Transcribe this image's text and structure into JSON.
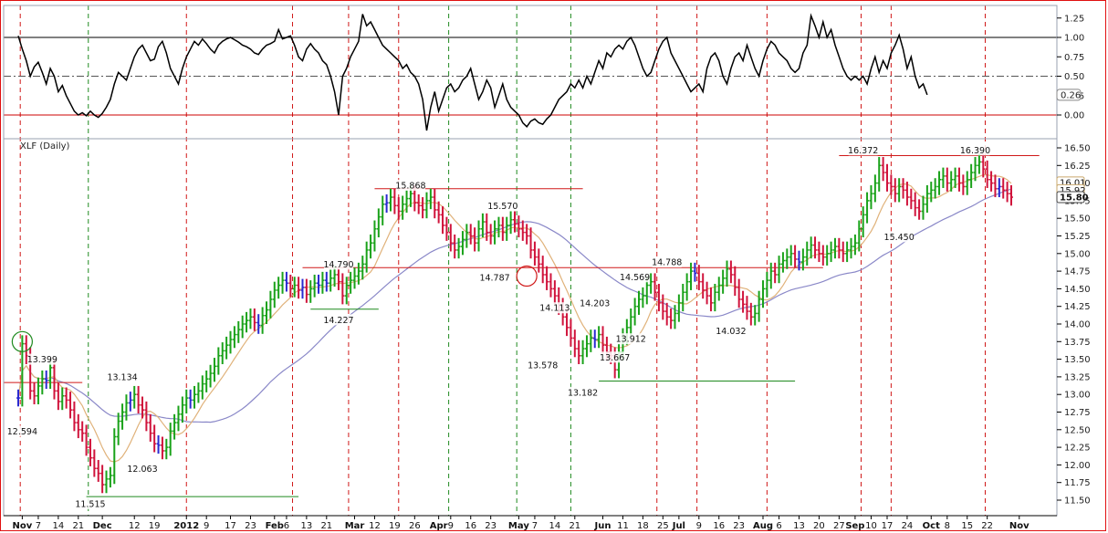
{
  "chart_data": [
    {
      "type": "line",
      "panel": "oscillator",
      "ylim": [
        -0.3,
        1.45
      ],
      "yticks": [
        "1.25",
        "1.00",
        "0.75",
        "0.50",
        "0.25",
        "0.00"
      ],
      "last_value_label": "0.26",
      "reference_lines": [
        {
          "y": 1.0,
          "style": "solid",
          "color": "#000000"
        },
        {
          "y": 0.5,
          "style": "dashdot",
          "color": "#555555"
        },
        {
          "y": 0.0,
          "style": "solid",
          "color": "#cc0000"
        }
      ],
      "series": [
        {
          "values": [
            1.02,
            0.85,
            0.7,
            0.5,
            0.62,
            0.68,
            0.55,
            0.4,
            0.6,
            0.5,
            0.3,
            0.38,
            0.25,
            0.15,
            0.05,
            0.0,
            0.03,
            -0.01,
            0.05,
            0.0,
            -0.03,
            0.02,
            0.1,
            0.2,
            0.4,
            0.55,
            0.5,
            0.45,
            0.6,
            0.75,
            0.85,
            0.9,
            0.8,
            0.7,
            0.72,
            0.88,
            0.95,
            0.8,
            0.6,
            0.5,
            0.4,
            0.6,
            0.75,
            0.85,
            0.95,
            0.9,
            0.98,
            0.92,
            0.85,
            0.8,
            0.9,
            0.95,
            0.98,
            1.0,
            0.97,
            0.94,
            0.9,
            0.88,
            0.85,
            0.8,
            0.78,
            0.85,
            0.9,
            0.92,
            0.95,
            1.1,
            0.98,
            1.0,
            1.02,
            0.9,
            0.75,
            0.7,
            0.85,
            0.92,
            0.85,
            0.8,
            0.7,
            0.65,
            0.5,
            0.3,
            0.0,
            0.5,
            0.6,
            0.75,
            0.85,
            0.95,
            1.3,
            1.15,
            1.2,
            1.1,
            1.0,
            0.9,
            0.85,
            0.8,
            0.75,
            0.7,
            0.6,
            0.65,
            0.55,
            0.5,
            0.4,
            0.2,
            -0.2,
            0.1,
            0.3,
            0.05,
            0.2,
            0.35,
            0.4,
            0.3,
            0.35,
            0.45,
            0.5,
            0.6,
            0.4,
            0.2,
            0.3,
            0.45,
            0.35,
            0.1,
            0.25,
            0.4,
            0.2,
            0.1,
            0.05,
            0.0,
            -0.1,
            -0.15,
            -0.08,
            -0.05,
            -0.1,
            -0.12,
            -0.05,
            0.0,
            0.1,
            0.2,
            0.25,
            0.3,
            0.4,
            0.35,
            0.45,
            0.35,
            0.5,
            0.4,
            0.55,
            0.7,
            0.6,
            0.8,
            0.75,
            0.85,
            0.9,
            0.85,
            0.95,
            1.0,
            0.9,
            0.75,
            0.6,
            0.5,
            0.55,
            0.7,
            0.85,
            0.95,
            1.0,
            0.8,
            0.7,
            0.6,
            0.5,
            0.4,
            0.3,
            0.35,
            0.4,
            0.3,
            0.6,
            0.75,
            0.8,
            0.7,
            0.5,
            0.4,
            0.6,
            0.75,
            0.8,
            0.7,
            0.9,
            0.75,
            0.6,
            0.5,
            0.7,
            0.85,
            0.95,
            0.9,
            0.8,
            0.75,
            0.7,
            0.6,
            0.55,
            0.6,
            0.8,
            0.9,
            1.28,
            1.15,
            1.0,
            1.2,
            1.0,
            1.1,
            0.9,
            0.75,
            0.6,
            0.5,
            0.45,
            0.5,
            0.45,
            0.5,
            0.4,
            0.6,
            0.75,
            0.55,
            0.7,
            0.6,
            0.8,
            0.9,
            1.03,
            0.85,
            0.6,
            0.75,
            0.5,
            0.35,
            0.4,
            0.26
          ]
        }
      ]
    },
    {
      "type": "bar",
      "panel": "price",
      "title": "XLF (Daily)",
      "ylim": [
        11.35,
        16.62
      ],
      "yticks": [
        "16.50",
        "16.25",
        "16.00",
        "15.75",
        "15.50",
        "15.25",
        "15.00",
        "14.75",
        "14.50",
        "14.25",
        "14.00",
        "13.75",
        "13.50",
        "13.25",
        "13.00",
        "12.75",
        "12.50",
        "12.25",
        "12.00",
        "11.75",
        "11.50"
      ],
      "xtick_labels": [
        {
          "i": 1,
          "label": "Nov",
          "bold": true
        },
        {
          "i": 5,
          "label": "7"
        },
        {
          "i": 10,
          "label": "14"
        },
        {
          "i": 15,
          "label": "21"
        },
        {
          "i": 21,
          "label": "Dec",
          "bold": true
        },
        {
          "i": 29,
          "label": "12"
        },
        {
          "i": 34,
          "label": "19"
        },
        {
          "i": 42,
          "label": "2012",
          "bold": true
        },
        {
          "i": 47,
          "label": "9"
        },
        {
          "i": 53,
          "label": "17"
        },
        {
          "i": 58,
          "label": "23"
        },
        {
          "i": 64,
          "label": "Feb",
          "bold": true
        },
        {
          "i": 67,
          "label": "6"
        },
        {
          "i": 72,
          "label": "13"
        },
        {
          "i": 77,
          "label": "21"
        },
        {
          "i": 84,
          "label": "Mar",
          "bold": true
        },
        {
          "i": 89,
          "label": "12"
        },
        {
          "i": 94,
          "label": "19"
        },
        {
          "i": 99,
          "label": "26"
        },
        {
          "i": 105,
          "label": "Apr",
          "bold": true
        },
        {
          "i": 108,
          "label": "9"
        },
        {
          "i": 113,
          "label": "16"
        },
        {
          "i": 118,
          "label": "23"
        },
        {
          "i": 125,
          "label": "May",
          "bold": true
        },
        {
          "i": 129,
          "label": "7"
        },
        {
          "i": 134,
          "label": "14"
        },
        {
          "i": 139,
          "label": "21"
        },
        {
          "i": 146,
          "label": "Jun",
          "bold": true
        },
        {
          "i": 151,
          "label": "11"
        },
        {
          "i": 156,
          "label": "18"
        },
        {
          "i": 161,
          "label": "25"
        },
        {
          "i": 165,
          "label": "Jul",
          "bold": true
        },
        {
          "i": 170,
          "label": "9"
        },
        {
          "i": 175,
          "label": "16"
        },
        {
          "i": 180,
          "label": "23"
        },
        {
          "i": 186,
          "label": "Aug",
          "bold": true
        },
        {
          "i": 190,
          "label": "6"
        },
        {
          "i": 195,
          "label": "13"
        },
        {
          "i": 200,
          "label": "20"
        },
        {
          "i": 205,
          "label": "27"
        },
        {
          "i": 209,
          "label": "Sep",
          "bold": true
        },
        {
          "i": 213,
          "label": "10"
        },
        {
          "i": 217,
          "label": "17"
        },
        {
          "i": 222,
          "label": "24"
        },
        {
          "i": 228,
          "label": "Oct",
          "bold": true
        },
        {
          "i": 232,
          "label": "8"
        },
        {
          "i": 237,
          "label": "15"
        },
        {
          "i": 242,
          "label": "22"
        },
        {
          "i": 250,
          "label": "Nov",
          "bold": true
        }
      ],
      "vertical_markers": [
        {
          "i": 0.5,
          "color": "red"
        },
        {
          "i": 17.5,
          "color": "green"
        },
        {
          "i": 42,
          "color": "red"
        },
        {
          "i": 68.5,
          "color": "red"
        },
        {
          "i": 82.5,
          "color": "red"
        },
        {
          "i": 95,
          "color": "red"
        },
        {
          "i": 107.5,
          "color": "green"
        },
        {
          "i": 124.5,
          "color": "green"
        },
        {
          "i": 138,
          "color": "green"
        },
        {
          "i": 159.5,
          "color": "red"
        },
        {
          "i": 169.5,
          "color": "red"
        },
        {
          "i": 187,
          "color": "red"
        },
        {
          "i": 210.5,
          "color": "red"
        },
        {
          "i": 218,
          "color": "red"
        },
        {
          "i": 241.5,
          "color": "red"
        }
      ],
      "horizontal_levels": [
        {
          "y": 13.17,
          "from": 0,
          "to": 16,
          "color": "red"
        },
        {
          "y": 11.55,
          "from": 17,
          "to": 70,
          "color": "green"
        },
        {
          "y": 14.21,
          "from": 73,
          "to": 90,
          "color": "green"
        },
        {
          "y": 14.8,
          "from": 71,
          "to": 201,
          "color": "red"
        },
        {
          "y": 15.92,
          "from": 89,
          "to": 141,
          "color": "red"
        },
        {
          "y": 13.19,
          "from": 145,
          "to": 194,
          "color": "green"
        },
        {
          "y": 16.39,
          "from": 205,
          "to": 255,
          "color": "red"
        }
      ],
      "price_labels": [
        {
          "i": 1,
          "y": 12.48,
          "text": "12.594"
        },
        {
          "i": 6,
          "y": 13.5,
          "text": "13.399"
        },
        {
          "i": 26,
          "y": 13.25,
          "text": "13.134"
        },
        {
          "i": 18,
          "y": 11.45,
          "text": "11.515"
        },
        {
          "i": 31,
          "y": 11.95,
          "text": "12.063"
        },
        {
          "i": 80,
          "y": 14.85,
          "text": "14.790"
        },
        {
          "i": 80,
          "y": 14.06,
          "text": "14.227"
        },
        {
          "i": 98,
          "y": 15.97,
          "text": "15.868"
        },
        {
          "i": 119,
          "y": 14.66,
          "text": "14.787"
        },
        {
          "i": 121,
          "y": 15.68,
          "text": "15.570"
        },
        {
          "i": 134,
          "y": 14.23,
          "text": "14.113"
        },
        {
          "i": 131,
          "y": 13.42,
          "text": "13.578"
        },
        {
          "i": 144,
          "y": 14.3,
          "text": "14.203"
        },
        {
          "i": 149,
          "y": 13.53,
          "text": "13.667"
        },
        {
          "i": 141,
          "y": 13.03,
          "text": "13.182"
        },
        {
          "i": 154,
          "y": 14.67,
          "text": "14.569"
        },
        {
          "i": 153,
          "y": 13.79,
          "text": "13.912"
        },
        {
          "i": 162,
          "y": 14.88,
          "text": "14.788"
        },
        {
          "i": 178,
          "y": 13.9,
          "text": "14.032"
        },
        {
          "i": 211,
          "y": 16.47,
          "text": "16.372"
        },
        {
          "i": 239,
          "y": 16.47,
          "text": "16.390"
        },
        {
          "i": 220,
          "y": 15.24,
          "text": "15.450"
        }
      ],
      "right_labels": [
        {
          "y": 16.01,
          "text": "16.01",
          "bold": false
        },
        {
          "y": 15.9,
          "text": "15.92",
          "bold": false
        },
        {
          "y": 15.8,
          "text": "15.80",
          "bold": true
        }
      ],
      "trouble_circles": [
        {
          "i": 1,
          "y": 13.75,
          "color": "green"
        },
        {
          "i": 127,
          "y": 14.68,
          "color": "red"
        }
      ],
      "closes": [
        12.95,
        13.72,
        13.55,
        13.05,
        12.98,
        13.12,
        13.22,
        13.2,
        13.38,
        13.05,
        12.9,
        12.98,
        12.92,
        12.78,
        12.6,
        12.5,
        12.45,
        12.25,
        12.1,
        11.95,
        11.88,
        11.72,
        11.8,
        11.85,
        12.4,
        12.62,
        12.75,
        12.88,
        12.92,
        13.0,
        12.85,
        12.78,
        12.6,
        12.45,
        12.3,
        12.28,
        12.2,
        12.25,
        12.48,
        12.6,
        12.72,
        12.85,
        12.95,
        12.92,
        13.0,
        13.05,
        13.15,
        13.22,
        13.3,
        13.4,
        13.55,
        13.62,
        13.7,
        13.78,
        13.85,
        13.92,
        14.0,
        14.05,
        14.1,
        14.02,
        13.98,
        14.12,
        14.2,
        14.35,
        14.48,
        14.55,
        14.62,
        14.58,
        14.5,
        14.55,
        14.48,
        14.52,
        14.42,
        14.5,
        14.58,
        14.55,
        14.62,
        14.58,
        14.65,
        14.7,
        14.6,
        14.4,
        14.55,
        14.62,
        14.68,
        14.75,
        14.85,
        15.05,
        15.15,
        15.35,
        15.52,
        15.7,
        15.72,
        15.8,
        15.68,
        15.6,
        15.7,
        15.78,
        15.85,
        15.72,
        15.68,
        15.62,
        15.75,
        15.8,
        15.62,
        15.55,
        15.4,
        15.3,
        15.15,
        15.05,
        15.1,
        15.2,
        15.3,
        15.25,
        15.15,
        15.35,
        15.45,
        15.3,
        15.25,
        15.35,
        15.4,
        15.3,
        15.4,
        15.48,
        15.42,
        15.35,
        15.3,
        15.25,
        15.05,
        14.95,
        14.85,
        14.7,
        14.6,
        14.5,
        14.4,
        14.25,
        14.1,
        13.95,
        13.8,
        13.65,
        13.55,
        13.65,
        13.72,
        13.8,
        13.78,
        13.85,
        13.7,
        13.6,
        13.55,
        13.35,
        13.6,
        13.82,
        13.95,
        14.1,
        14.25,
        14.35,
        14.4,
        14.55,
        14.6,
        14.45,
        14.3,
        14.18,
        14.1,
        14.05,
        14.15,
        14.3,
        14.45,
        14.6,
        14.75,
        14.72,
        14.6,
        14.48,
        14.4,
        14.3,
        14.45,
        14.55,
        14.65,
        14.78,
        14.7,
        14.52,
        14.35,
        14.28,
        14.18,
        14.1,
        14.15,
        14.35,
        14.5,
        14.62,
        14.75,
        14.7,
        14.85,
        14.9,
        14.95,
        15.0,
        14.92,
        14.88,
        14.95,
        15.05,
        15.12,
        15.05,
        15.0,
        14.95,
        15.0,
        15.05,
        15.1,
        15.05,
        15.0,
        15.05,
        15.1,
        15.15,
        15.35,
        15.55,
        15.75,
        15.85,
        16.0,
        16.25,
        16.15,
        16.0,
        15.95,
        15.85,
        15.95,
        15.9,
        15.8,
        15.75,
        15.65,
        15.6,
        15.7,
        15.85,
        15.9,
        15.95,
        16.05,
        16.1,
        16.0,
        16.05,
        16.1,
        16.0,
        15.95,
        16.05,
        16.15,
        16.25,
        16.3,
        16.2,
        16.05,
        16.0,
        15.92,
        15.95,
        15.9,
        15.85,
        15.8
      ]
    }
  ]
}
